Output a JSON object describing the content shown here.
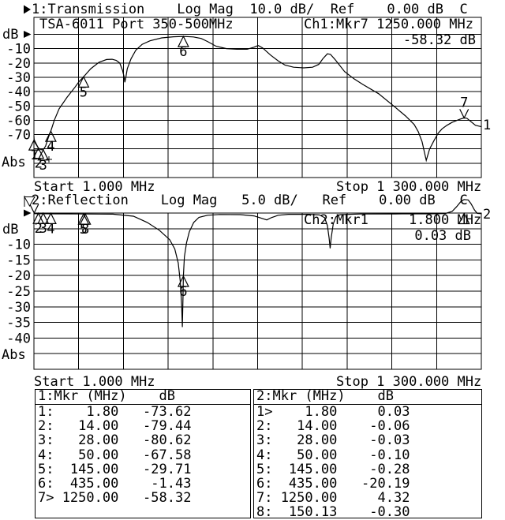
{
  "colors": {
    "fg": "#000000",
    "bg": "#ffffff"
  },
  "header1": "1:Transmission    Log Mag  10.0 dB/  Ref    0.00 dB  C",
  "header2": "2:Reflection    Log Mag   5.0 dB/   Ref    0.00 dB   C",
  "chart1": {
    "annotation": "TSA-6011 Port 350-500MHz",
    "marker_readout": "Ch1:Mkr7 1250.000 MHz",
    "marker_value": "-58.32 dB",
    "y_unit": "dB",
    "abs_label": "Abs",
    "trace_label": "1",
    "start": "Start 1.000 MHz",
    "stop": "Stop 1 300.000 MHz",
    "y_ticks": [
      {
        "label": "-10",
        "db": -10
      },
      {
        "label": "-20",
        "db": -20
      },
      {
        "label": "-30",
        "db": -30
      },
      {
        "label": "-40",
        "db": -40
      },
      {
        "label": "-50",
        "db": -50
      },
      {
        "label": "-60",
        "db": -60
      },
      {
        "label": "-70",
        "db": -70
      }
    ],
    "markers": [
      {
        "label": "1",
        "f": 1.8,
        "db": -73.62,
        "type": "tri"
      },
      {
        "label": "2",
        "f": 14,
        "db": -79.44,
        "type": "tri"
      },
      {
        "label": "3",
        "f": 28,
        "db": -80.62,
        "type": "tri"
      },
      {
        "label": "4",
        "f": 50,
        "db": -67.58,
        "type": "tri"
      },
      {
        "label": "5",
        "f": 145,
        "db": -29.71,
        "type": "tri"
      },
      {
        "label": "6",
        "f": 435,
        "db": -1.43,
        "type": "tri"
      },
      {
        "label": "7",
        "f": 1250,
        "db": -58.32,
        "type": "vee"
      }
    ]
  },
  "chart2": {
    "marker_readout": "Ch2:Mkr1     1.800 MHz",
    "marker_value": "0.03 dB",
    "y_unit": "dB",
    "abs_label": "Abs",
    "trace_label": "2",
    "start": "Start 1.000 MHz",
    "stop": "Stop 1 300.000 MHz",
    "y_ticks": [
      {
        "label": "-10",
        "db": -10
      },
      {
        "label": "-15",
        "db": -15
      },
      {
        "label": "-20",
        "db": -20
      },
      {
        "label": "-25",
        "db": -25
      },
      {
        "label": "-30",
        "db": -30
      },
      {
        "label": "-35",
        "db": -35
      },
      {
        "label": "-40",
        "db": -40
      }
    ],
    "markers": [
      {
        "label": "1",
        "f": 1.8,
        "db": 0.03,
        "type": "vee",
        "hide_label": true
      },
      {
        "label": "2",
        "f": 14,
        "db": -0.06,
        "type": "tri"
      },
      {
        "label": "3",
        "f": 28,
        "db": -0.03,
        "type": "tri"
      },
      {
        "label": "4",
        "f": 50,
        "db": -0.1,
        "type": "tri"
      },
      {
        "label": "5",
        "f": 145,
        "db": -0.28,
        "type": "tri"
      },
      {
        "label": "8",
        "f": 150.13,
        "db": -0.3,
        "type": "tri"
      },
      {
        "label": "6",
        "f": 435,
        "db": -20.19,
        "type": "tri"
      },
      {
        "label": "7",
        "f": 1250,
        "db": 4.32,
        "type": "tri",
        "clamp_top": true,
        "hide_label": true
      }
    ]
  },
  "chart_data": [
    {
      "type": "line",
      "name": "transmission",
      "title": "1:Transmission",
      "ylabel": "dB",
      "scale_db_per_div": 10.0,
      "ref_db": 0.0,
      "x_start_mhz": 1.0,
      "x_stop_mhz": 1300.0,
      "points": [
        [
          1,
          -71
        ],
        [
          1.8,
          -73.62
        ],
        [
          5,
          -76
        ],
        [
          14,
          -79.44
        ],
        [
          22,
          -80.5
        ],
        [
          28,
          -80.62
        ],
        [
          35,
          -78
        ],
        [
          43,
          -72
        ],
        [
          50,
          -67.58
        ],
        [
          60,
          -60
        ],
        [
          74,
          -52
        ],
        [
          97,
          -44
        ],
        [
          120,
          -37
        ],
        [
          132,
          -33
        ],
        [
          145,
          -29.71
        ],
        [
          166,
          -24
        ],
        [
          190,
          -19.5
        ],
        [
          212,
          -17.6
        ],
        [
          228,
          -17.4
        ],
        [
          240,
          -18.2
        ],
        [
          250,
          -20
        ],
        [
          258,
          -25
        ],
        [
          263,
          -30
        ],
        [
          265,
          -33.5
        ],
        [
          268,
          -30
        ],
        [
          272,
          -24
        ],
        [
          283,
          -17
        ],
        [
          297,
          -11
        ],
        [
          315,
          -7
        ],
        [
          338,
          -4.5
        ],
        [
          372,
          -2.5
        ],
        [
          406,
          -1.7
        ],
        [
          435,
          -1.43
        ],
        [
          464,
          -1.8
        ],
        [
          487,
          -2.9
        ],
        [
          505,
          -5
        ],
        [
          530,
          -8.3
        ],
        [
          560,
          -10
        ],
        [
          590,
          -10.4
        ],
        [
          620,
          -10.4
        ],
        [
          640,
          -9
        ],
        [
          652,
          -7.8
        ],
        [
          665,
          -9.5
        ],
        [
          688,
          -14.5
        ],
        [
          710,
          -18.5
        ],
        [
          730,
          -21.5
        ],
        [
          755,
          -23
        ],
        [
          784,
          -23.4
        ],
        [
          810,
          -23
        ],
        [
          828,
          -21
        ],
        [
          840,
          -17
        ],
        [
          853,
          -13.6
        ],
        [
          862,
          -14
        ],
        [
          875,
          -17.5
        ],
        [
          903,
          -26
        ],
        [
          930,
          -31
        ],
        [
          956,
          -35
        ],
        [
          1002,
          -41.5
        ],
        [
          1048,
          -50.5
        ],
        [
          1080,
          -57
        ],
        [
          1105,
          -63
        ],
        [
          1117,
          -68
        ],
        [
          1128,
          -75
        ],
        [
          1140,
          -88
        ],
        [
          1150,
          -80
        ],
        [
          1163,
          -74
        ],
        [
          1175,
          -69
        ],
        [
          1186,
          -66
        ],
        [
          1200,
          -63.5
        ],
        [
          1215,
          -61.5
        ],
        [
          1230,
          -60
        ],
        [
          1238,
          -59.3
        ],
        [
          1250,
          -58.32
        ],
        [
          1258,
          -58.6
        ],
        [
          1270,
          -61
        ],
        [
          1283,
          -63.5
        ],
        [
          1300,
          -64.5
        ]
      ]
    },
    {
      "type": "line",
      "name": "reflection",
      "title": "2:Reflection",
      "ylabel": "dB",
      "scale_db_per_div": 5.0,
      "ref_db": 0.0,
      "x_start_mhz": 1.0,
      "x_stop_mhz": 1300.0,
      "points": [
        [
          1,
          -0.2
        ],
        [
          60,
          -0.25
        ],
        [
          150,
          -0.3
        ],
        [
          230,
          -0.35
        ],
        [
          290,
          -1
        ],
        [
          330,
          -3
        ],
        [
          365,
          -5.5
        ],
        [
          395,
          -8.5
        ],
        [
          410,
          -11.5
        ],
        [
          420,
          -16
        ],
        [
          426,
          -22
        ],
        [
          430,
          -30
        ],
        [
          432,
          -36.5
        ],
        [
          434,
          -26
        ],
        [
          435,
          -20.19
        ],
        [
          438,
          -14
        ],
        [
          444,
          -9.5
        ],
        [
          452,
          -6
        ],
        [
          465,
          -3
        ],
        [
          480,
          -1.4
        ],
        [
          505,
          -0.7
        ],
        [
          540,
          -0.45
        ],
        [
          600,
          -0.5
        ],
        [
          640,
          -0.9
        ],
        [
          660,
          -1.6
        ],
        [
          677,
          -2.2
        ],
        [
          690,
          -1.5
        ],
        [
          710,
          -0.7
        ],
        [
          740,
          -0.4
        ],
        [
          800,
          -0.4
        ],
        [
          830,
          -0.6
        ],
        [
          845,
          -1.5
        ],
        [
          853,
          -4
        ],
        [
          858,
          -8
        ],
        [
          861,
          -11.3
        ],
        [
          864,
          -8
        ],
        [
          870,
          -3.5
        ],
        [
          878,
          -1.2
        ],
        [
          890,
          -0.5
        ],
        [
          950,
          -0.3
        ],
        [
          1050,
          -0.28
        ],
        [
          1150,
          -0.25
        ],
        [
          1195,
          -0.15
        ],
        [
          1215,
          0.5
        ],
        [
          1228,
          2
        ],
        [
          1240,
          3.6
        ],
        [
          1250,
          4.32
        ],
        [
          1262,
          4.2
        ],
        [
          1270,
          3
        ],
        [
          1280,
          1
        ],
        [
          1288,
          -0.1
        ],
        [
          1300,
          -0.2
        ]
      ]
    }
  ],
  "tables": [
    {
      "header": "1:Mkr (MHz)    dB",
      "rows": [
        {
          "n": "1:",
          "f": "1.80",
          "v": "-73.62"
        },
        {
          "n": "2:",
          "f": "14.00",
          "v": "-79.44"
        },
        {
          "n": "3:",
          "f": "28.00",
          "v": "-80.62"
        },
        {
          "n": "4:",
          "f": "50.00",
          "v": "-67.58"
        },
        {
          "n": "5:",
          "f": "145.00",
          "v": "-29.71"
        },
        {
          "n": "6:",
          "f": "435.00",
          "v": "-1.43"
        },
        {
          "n": "7>",
          "f": "1250.00",
          "v": "-58.32"
        }
      ]
    },
    {
      "header": "2:Mkr (MHz)    dB",
      "rows": [
        {
          "n": "1>",
          "f": "1.80",
          "v": "0.03"
        },
        {
          "n": "2:",
          "f": "14.00",
          "v": "-0.06"
        },
        {
          "n": "3:",
          "f": "28.00",
          "v": "-0.03"
        },
        {
          "n": "4:",
          "f": "50.00",
          "v": "-0.10"
        },
        {
          "n": "5:",
          "f": "145.00",
          "v": "-0.28"
        },
        {
          "n": "6:",
          "f": "435.00",
          "v": "-20.19"
        },
        {
          "n": "7:",
          "f": "1250.00",
          "v": "4.32"
        },
        {
          "n": "8:",
          "f": "150.13",
          "v": "-0.30"
        }
      ]
    }
  ]
}
